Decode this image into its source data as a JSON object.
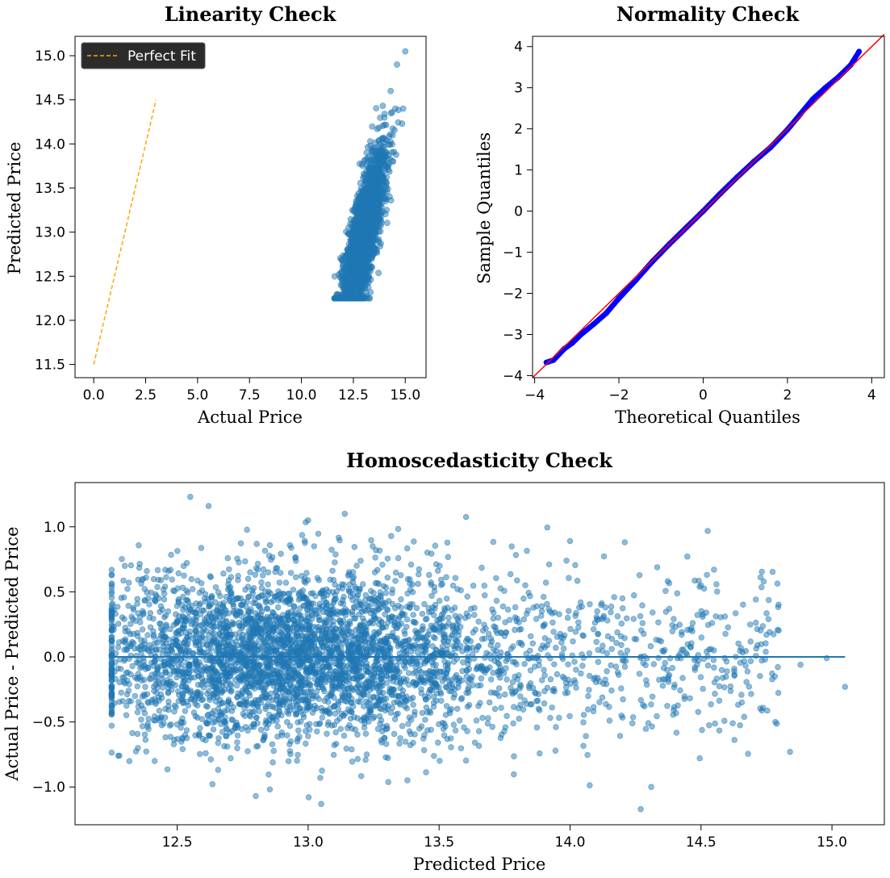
{
  "chart_data": [
    {
      "id": "linearity",
      "type": "scatter",
      "title": "Linearity Check",
      "xlabel": "Actual Price",
      "ylabel": "Predicted Price",
      "xlim": [
        -0.9,
        16.0
      ],
      "ylim": [
        11.35,
        15.22
      ],
      "xticks": [
        0.0,
        2.5,
        5.0,
        7.5,
        10.0,
        12.5,
        15.0
      ],
      "xtick_labels": [
        "0.0",
        "2.5",
        "5.0",
        "7.5",
        "10.0",
        "12.5",
        "15.0"
      ],
      "yticks": [
        11.5,
        12.0,
        12.5,
        13.0,
        13.5,
        14.0,
        14.5,
        15.0
      ],
      "ytick_labels": [
        "11.5",
        "12.0",
        "12.5",
        "13.0",
        "13.5",
        "14.0",
        "14.5",
        "15.0"
      ],
      "legend": {
        "placement": "top-left",
        "entries": [
          "Perfect Fit"
        ]
      },
      "reference_line": {
        "name": "Perfect Fit",
        "style": "dashed",
        "color": "#ffa500",
        "x": [
          0.0,
          3.0
        ],
        "y": [
          11.5,
          14.5
        ]
      },
      "scatter": {
        "color": "#1f77b4",
        "points_sample": [
          [
            11.9,
            12.4
          ],
          [
            12.0,
            12.3
          ],
          [
            12.3,
            12.6
          ],
          [
            12.5,
            12.9
          ],
          [
            12.8,
            13.1
          ],
          [
            13.0,
            13.3
          ],
          [
            13.2,
            13.5
          ],
          [
            13.5,
            13.7
          ],
          [
            13.8,
            14.0
          ],
          [
            14.0,
            14.3
          ],
          [
            14.3,
            14.6
          ],
          [
            14.6,
            14.9
          ],
          [
            15.0,
            15.05
          ],
          [
            14.9,
            14.4
          ],
          [
            12.2,
            12.4
          ]
        ],
        "x_range": [
          11.6,
          15.0
        ],
        "y_range": [
          12.25,
          15.05
        ]
      }
    },
    {
      "id": "normality",
      "type": "scatter",
      "title": "Normality Check",
      "xlabel": "Theoretical Quantiles",
      "ylabel": "Sample Quantiles",
      "xlim": [
        -4.05,
        4.3
      ],
      "ylim": [
        -4.05,
        4.25
      ],
      "xticks": [
        -4,
        -2,
        0,
        2,
        4
      ],
      "xtick_labels": [
        "−4",
        "−2",
        "0",
        "2",
        "4"
      ],
      "yticks": [
        -4,
        -3,
        -2,
        -1,
        0,
        1,
        2,
        3,
        4
      ],
      "ytick_labels": [
        "−4",
        "−3",
        "−2",
        "−1",
        "0",
        "1",
        "2",
        "3",
        "4"
      ],
      "reference_line": {
        "color": "#ff0000",
        "x": [
          -4.05,
          4.3
        ],
        "y": [
          -4.05,
          4.3
        ]
      },
      "scatter": {
        "color": "#0000ff",
        "points": [
          [
            -3.72,
            -3.68
          ],
          [
            -3.55,
            -3.62
          ],
          [
            -3.3,
            -3.35
          ],
          [
            -3.1,
            -3.2
          ],
          [
            -2.9,
            -3.0
          ],
          [
            -2.6,
            -2.75
          ],
          [
            -2.3,
            -2.48
          ],
          [
            -2.0,
            -2.12
          ],
          [
            -1.6,
            -1.68
          ],
          [
            -1.2,
            -1.22
          ],
          [
            -0.8,
            -0.8
          ],
          [
            -0.4,
            -0.4
          ],
          [
            0.0,
            0.0
          ],
          [
            0.4,
            0.42
          ],
          [
            0.8,
            0.82
          ],
          [
            1.2,
            1.2
          ],
          [
            1.6,
            1.55
          ],
          [
            2.0,
            1.98
          ],
          [
            2.3,
            2.35
          ],
          [
            2.6,
            2.72
          ],
          [
            2.9,
            3.0
          ],
          [
            3.2,
            3.25
          ],
          [
            3.5,
            3.55
          ],
          [
            3.7,
            3.88
          ]
        ]
      }
    },
    {
      "id": "homoscedasticity",
      "type": "scatter",
      "title": "Homoscedasticity Check",
      "xlabel": "Predicted Price",
      "ylabel": "Actual Price - Predicted Price",
      "xlim": [
        12.11,
        15.2
      ],
      "ylim": [
        -1.29,
        1.34
      ],
      "xticks": [
        12.5,
        13.0,
        13.5,
        14.0,
        14.5,
        15.0
      ],
      "xtick_labels": [
        "12.5",
        "13.0",
        "13.5",
        "14.0",
        "14.5",
        "15.0"
      ],
      "yticks": [
        -1.0,
        -0.5,
        0.0,
        0.5,
        1.0
      ],
      "ytick_labels": [
        "−1.0",
        "−0.5",
        "0.0",
        "0.5",
        "1.0"
      ],
      "reference_line": {
        "color": "#1f77b4",
        "x": [
          12.25,
          15.05
        ],
        "y": [
          0.0,
          0.0
        ]
      },
      "scatter": {
        "color": "#1f77b4",
        "points_sample": [
          [
            12.25,
            -0.3
          ],
          [
            12.3,
            0.7
          ],
          [
            12.55,
            1.23
          ],
          [
            12.62,
            1.16
          ],
          [
            13.0,
            1.05
          ],
          [
            13.14,
            1.1
          ],
          [
            14.0,
            0.89
          ],
          [
            14.2,
            0.45
          ],
          [
            14.5,
            0.55
          ],
          [
            14.75,
            0.17
          ],
          [
            14.88,
            -0.06
          ],
          [
            14.98,
            -0.01
          ],
          [
            15.05,
            -0.23
          ],
          [
            14.84,
            -0.73
          ],
          [
            14.27,
            -1.17
          ],
          [
            14.31,
            -1.0
          ],
          [
            13.05,
            -1.13
          ],
          [
            12.8,
            -1.07
          ],
          [
            12.35,
            -0.7
          ],
          [
            12.7,
            0.15
          ],
          [
            13.0,
            0.0
          ],
          [
            13.3,
            -0.2
          ],
          [
            13.6,
            0.3
          ],
          [
            13.9,
            -0.1
          ]
        ],
        "x_range": [
          12.25,
          15.05
        ],
        "y_range": [
          -1.17,
          1.23
        ]
      }
    }
  ]
}
